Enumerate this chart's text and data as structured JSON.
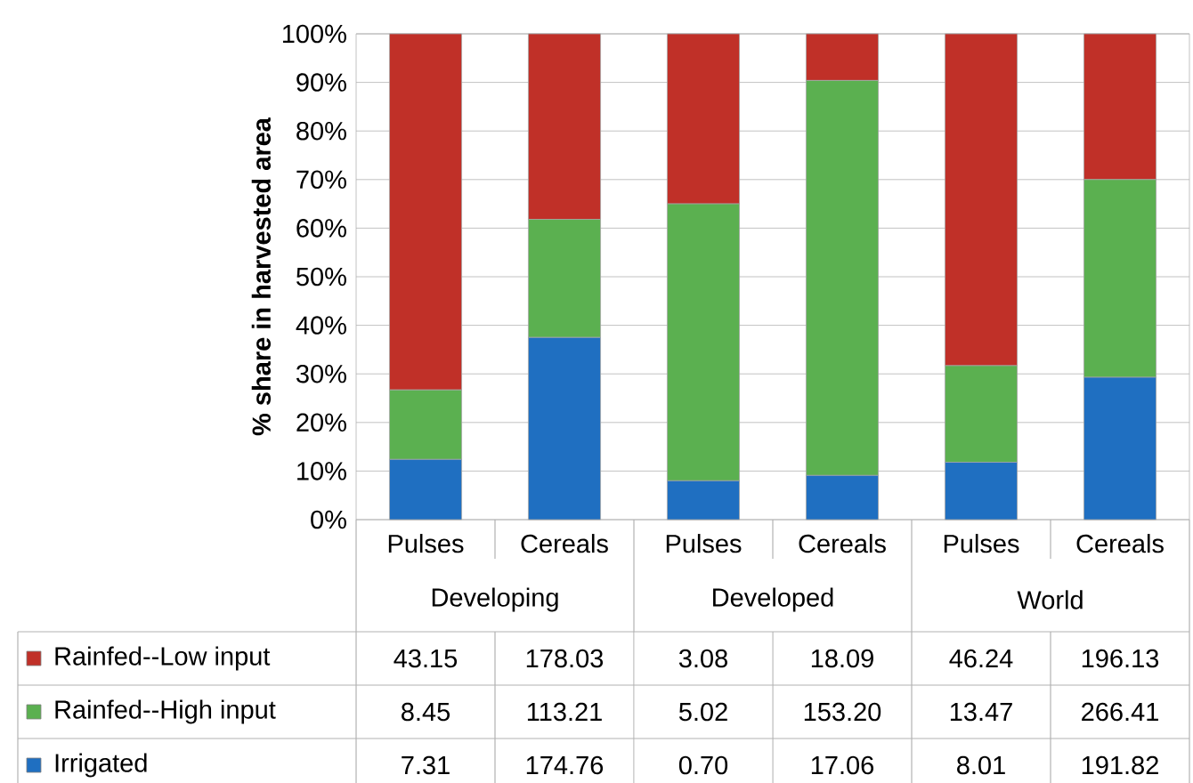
{
  "chart_data": {
    "type": "bar",
    "stacked": true,
    "ylabel": "% share in harvested area",
    "categories": [
      "Pulses",
      "Cereals",
      "Pulses",
      "Cereals",
      "Pulses",
      "Cereals"
    ],
    "annotations": [
      "Developing",
      "Developed",
      "World",
      "43.15",
      "178.03",
      "3.08",
      "18.09",
      "46.24",
      "196.13",
      "8.45",
      "113.21",
      "5.02",
      "153.20",
      "13.47",
      "266.41",
      "7.31",
      "174.76",
      "0.70",
      "17.06",
      "8.01",
      "191.82"
    ],
    "series": [
      {
        "name": "Irrigated",
        "color": "#1f6fc1",
        "values": [
          12.4,
          37.5,
          8.0,
          9.1,
          11.8,
          29.3
        ]
      },
      {
        "name": "Rainfed--High input",
        "color": "#5bb050",
        "values": [
          14.3,
          24.3,
          57.0,
          81.3,
          19.9,
          40.7
        ]
      },
      {
        "name": "Rainfed--Low input",
        "color": "#c03028",
        "values": [
          73.3,
          38.2,
          35.0,
          9.6,
          68.3,
          30.0
        ]
      }
    ],
    "ylim": [
      0,
      100
    ],
    "yticks": [
      {
        "value": 0,
        "label": "0%"
      },
      {
        "value": 10,
        "label": "10%"
      },
      {
        "value": 20,
        "label": "20%"
      },
      {
        "value": 30,
        "label": "30%"
      },
      {
        "value": 40,
        "label": "40%"
      },
      {
        "value": 50,
        "label": "50%"
      },
      {
        "value": 60,
        "label": "60%"
      },
      {
        "value": 70,
        "label": "70%"
      },
      {
        "value": 80,
        "label": "80%"
      },
      {
        "value": 90,
        "label": "90%"
      },
      {
        "value": 100,
        "label": "100%"
      }
    ],
    "grid": "y",
    "legend": "bottom"
  }
}
